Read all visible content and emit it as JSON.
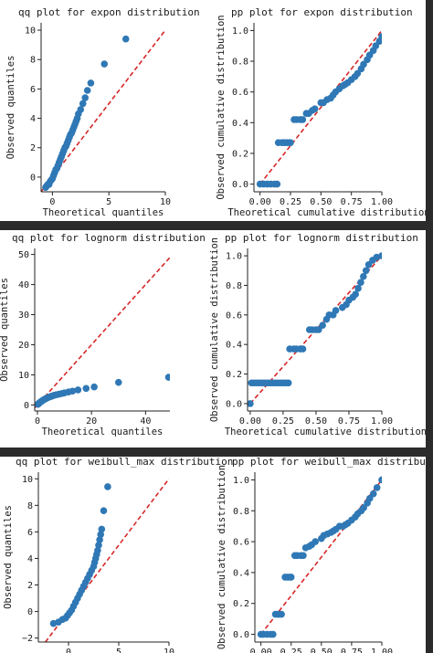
{
  "colors": {
    "points": "#2f78b5",
    "reference_line": "#d62728",
    "separator": "#2b2b2b"
  },
  "chart_data": [
    {
      "id": "qq-expon",
      "type": "scatter",
      "title": "qq plot for expon distribution",
      "xlabel": "Theoretical quantiles",
      "ylabel": "Observed quantiles",
      "xlim": [
        -1,
        10
      ],
      "ylim": [
        -1,
        10.5
      ],
      "xticks": [
        0,
        5,
        10
      ],
      "xtick_labels": [
        "0",
        "5",
        "10"
      ],
      "yticks": [
        0,
        2,
        4,
        6,
        8,
        10
      ],
      "ytick_labels": [
        "0",
        "2",
        "4",
        "6",
        "8",
        "10"
      ],
      "reference_line": [
        [
          -1,
          -1
        ],
        [
          10,
          10
        ]
      ],
      "x": [
        -0.6,
        -0.5,
        -0.4,
        -0.3,
        -0.2,
        -0.1,
        0.0,
        0.1,
        0.2,
        0.3,
        0.4,
        0.5,
        0.6,
        0.7,
        0.8,
        0.9,
        1.0,
        1.1,
        1.2,
        1.3,
        1.4,
        1.5,
        1.6,
        1.7,
        1.8,
        1.9,
        2.0,
        2.1,
        2.2,
        2.3,
        2.5,
        2.7,
        2.9,
        3.1,
        3.4,
        4.6,
        6.5
      ],
      "y": [
        -0.7,
        -0.6,
        -0.5,
        -0.5,
        -0.3,
        -0.2,
        -0.1,
        0.1,
        0.3,
        0.5,
        0.6,
        0.8,
        1.0,
        1.2,
        1.4,
        1.6,
        1.8,
        2.0,
        2.1,
        2.3,
        2.5,
        2.7,
        2.9,
        3.0,
        3.2,
        3.4,
        3.6,
        3.8,
        4.0,
        4.3,
        4.6,
        5.0,
        5.4,
        5.9,
        6.4,
        7.7,
        9.4
      ]
    },
    {
      "id": "pp-expon",
      "type": "scatter",
      "title": "pp plot for expon distribution",
      "xlabel": "Theoretical cumulative distribution",
      "ylabel": "Observed cumulative distribution",
      "xlim": [
        -0.05,
        1.0
      ],
      "ylim": [
        -0.05,
        1.05
      ],
      "xticks": [
        0,
        0.25,
        0.5,
        0.75,
        1.0
      ],
      "xtick_labels": [
        "0.00",
        "0.25",
        "0.50",
        "0.75",
        "1.00"
      ],
      "yticks": [
        0,
        0.2,
        0.4,
        0.6,
        0.8,
        1.0
      ],
      "ytick_labels": [
        "0.0",
        "0.2",
        "0.4",
        "0.6",
        "0.8",
        "1.0"
      ],
      "reference_line": [
        [
          0,
          0
        ],
        [
          1,
          1
        ]
      ],
      "x": [
        0.0,
        0.03,
        0.06,
        0.09,
        0.12,
        0.14,
        0.15,
        0.18,
        0.2,
        0.22,
        0.24,
        0.25,
        0.28,
        0.3,
        0.33,
        0.35,
        0.38,
        0.4,
        0.43,
        0.45,
        0.5,
        0.52,
        0.55,
        0.58,
        0.6,
        0.62,
        0.65,
        0.68,
        0.7,
        0.72,
        0.75,
        0.78,
        0.8,
        0.83,
        0.85,
        0.88,
        0.9,
        0.93,
        0.95,
        0.98,
        1.0
      ],
      "y": [
        0.0,
        0.0,
        0.0,
        0.0,
        0.0,
        0.0,
        0.27,
        0.27,
        0.27,
        0.27,
        0.27,
        0.27,
        0.42,
        0.42,
        0.42,
        0.42,
        0.46,
        0.46,
        0.48,
        0.49,
        0.53,
        0.53,
        0.55,
        0.56,
        0.58,
        0.6,
        0.62,
        0.64,
        0.65,
        0.66,
        0.68,
        0.7,
        0.72,
        0.75,
        0.78,
        0.81,
        0.84,
        0.87,
        0.9,
        0.93,
        0.96
      ]
    },
    {
      "id": "qq-lognorm",
      "type": "scatter",
      "title": "qq plot for lognorm distribution",
      "xlabel": "Theoretical quantiles",
      "ylabel": "Observed quantiles",
      "xlim": [
        -1,
        49
      ],
      "ylim": [
        -2,
        52
      ],
      "xticks": [
        0,
        20,
        40
      ],
      "xtick_labels": [
        "0",
        "20",
        "40"
      ],
      "yticks": [
        0,
        10,
        20,
        30,
        40,
        50
      ],
      "ytick_labels": [
        "0",
        "10",
        "20",
        "30",
        "40",
        "50"
      ],
      "reference_line": [
        [
          -1,
          -1
        ],
        [
          49,
          49
        ]
      ],
      "x": [
        0.2,
        0.4,
        0.6,
        0.9,
        1.2,
        1.5,
        1.8,
        2.1,
        2.5,
        2.9,
        3.3,
        3.8,
        4.3,
        4.9,
        5.5,
        6.2,
        7.0,
        8.0,
        9.0,
        10.0,
        11.5,
        13.0,
        15.0,
        18.0,
        21.0,
        30.0,
        48.5
      ],
      "y": [
        0.2,
        0.4,
        0.6,
        0.8,
        1.0,
        1.2,
        1.4,
        1.6,
        1.8,
        2.0,
        2.2,
        2.4,
        2.6,
        2.8,
        3.0,
        3.2,
        3.4,
        3.6,
        3.8,
        4.0,
        4.3,
        4.6,
        5.0,
        5.5,
        6.0,
        7.5,
        9.2
      ]
    },
    {
      "id": "pp-lognorm",
      "type": "scatter",
      "title": "pp plot for lognorm distribution",
      "xlabel": "Theoretical cumulative distribution",
      "ylabel": "Observed cumulative distribution",
      "xlim": [
        -0.02,
        1.0
      ],
      "ylim": [
        -0.05,
        1.05
      ],
      "xticks": [
        0,
        0.25,
        0.5,
        0.75,
        1.0
      ],
      "xtick_labels": [
        "0.00",
        "0.25",
        "0.50",
        "0.75",
        "1.00"
      ],
      "yticks": [
        0,
        0.2,
        0.4,
        0.6,
        0.8,
        1.0
      ],
      "ytick_labels": [
        "0.0",
        "0.2",
        "0.4",
        "0.6",
        "0.8",
        "1.0"
      ],
      "reference_line": [
        [
          0,
          0
        ],
        [
          1,
          1
        ]
      ],
      "x": [
        0.0,
        0.01,
        0.03,
        0.05,
        0.07,
        0.09,
        0.11,
        0.13,
        0.15,
        0.17,
        0.19,
        0.21,
        0.23,
        0.25,
        0.27,
        0.29,
        0.3,
        0.33,
        0.35,
        0.38,
        0.4,
        0.45,
        0.47,
        0.5,
        0.52,
        0.55,
        0.58,
        0.6,
        0.63,
        0.65,
        0.7,
        0.73,
        0.75,
        0.78,
        0.8,
        0.82,
        0.84,
        0.86,
        0.88,
        0.9,
        0.93,
        0.96,
        1.0
      ],
      "y": [
        0.0,
        0.14,
        0.14,
        0.14,
        0.14,
        0.14,
        0.14,
        0.14,
        0.14,
        0.14,
        0.14,
        0.14,
        0.14,
        0.14,
        0.14,
        0.14,
        0.37,
        0.37,
        0.37,
        0.37,
        0.37,
        0.5,
        0.5,
        0.5,
        0.5,
        0.53,
        0.57,
        0.6,
        0.6,
        0.63,
        0.65,
        0.67,
        0.7,
        0.72,
        0.74,
        0.78,
        0.82,
        0.86,
        0.9,
        0.94,
        0.97,
        0.99,
        1.0
      ]
    },
    {
      "id": "qq-weibull-max",
      "type": "scatter",
      "title": "qq plot for weibull_max distribution",
      "xlabel": "",
      "ylabel": "Observed quantiles",
      "xlim": [
        -3,
        10
      ],
      "ylim": [
        -2.3,
        10.5
      ],
      "xticks": [
        0,
        5,
        10
      ],
      "xtick_labels": [
        "0",
        "5",
        "10"
      ],
      "yticks": [
        -2,
        0,
        2,
        4,
        6,
        8,
        10
      ],
      "ytick_labels": [
        "−2",
        "0",
        "2",
        "4",
        "6",
        "8",
        "10"
      ],
      "reference_line": [
        [
          -2.3,
          -2.3
        ],
        [
          10,
          10
        ]
      ],
      "x": [
        -1.5,
        -1.0,
        -0.6,
        -0.3,
        -0.1,
        0.1,
        0.3,
        0.5,
        0.7,
        0.9,
        1.1,
        1.3,
        1.5,
        1.7,
        1.9,
        2.1,
        2.3,
        2.5,
        2.6,
        2.7,
        2.8,
        2.9,
        3.0,
        3.1,
        3.2,
        3.3,
        3.5,
        3.9
      ],
      "y": [
        -0.9,
        -0.8,
        -0.6,
        -0.5,
        -0.3,
        -0.1,
        0.1,
        0.4,
        0.7,
        1.0,
        1.3,
        1.6,
        1.9,
        2.2,
        2.5,
        2.8,
        3.1,
        3.4,
        3.7,
        4.0,
        4.3,
        4.6,
        5.0,
        5.4,
        5.8,
        6.2,
        7.6,
        9.4
      ]
    },
    {
      "id": "pp-weibull-max",
      "type": "scatter",
      "title": "pp plot for weibull_max distribution",
      "xlabel": "",
      "ylabel": "Observed cumulative distribution",
      "xlim": [
        -0.05,
        1.0
      ],
      "ylim": [
        -0.05,
        1.05
      ],
      "xticks": [
        0,
        0.25,
        0.5,
        0.75,
        1.0
      ],
      "xtick_labels": [
        "0.00",
        "0.25",
        "0.50",
        "0.75",
        "1.00"
      ],
      "yticks": [
        0,
        0.2,
        0.4,
        0.6,
        0.8,
        1.0
      ],
      "ytick_labels": [
        "0.0",
        "0.2",
        "0.4",
        "0.6",
        "0.8",
        "1.0"
      ],
      "reference_line": [
        [
          0,
          0
        ],
        [
          1,
          1
        ]
      ],
      "x": [
        0.0,
        0.02,
        0.05,
        0.08,
        0.1,
        0.12,
        0.14,
        0.15,
        0.17,
        0.2,
        0.22,
        0.24,
        0.25,
        0.28,
        0.3,
        0.33,
        0.35,
        0.37,
        0.4,
        0.42,
        0.45,
        0.5,
        0.52,
        0.55,
        0.58,
        0.6,
        0.62,
        0.65,
        0.68,
        0.7,
        0.72,
        0.75,
        0.78,
        0.8,
        0.83,
        0.85,
        0.88,
        0.9,
        0.93,
        0.96,
        1.0
      ],
      "y": [
        0.0,
        0.0,
        0.0,
        0.0,
        0.0,
        0.13,
        0.13,
        0.13,
        0.13,
        0.37,
        0.37,
        0.37,
        0.37,
        0.51,
        0.51,
        0.51,
        0.51,
        0.56,
        0.57,
        0.58,
        0.6,
        0.62,
        0.64,
        0.65,
        0.66,
        0.67,
        0.68,
        0.7,
        0.7,
        0.71,
        0.72,
        0.74,
        0.76,
        0.78,
        0.8,
        0.82,
        0.85,
        0.88,
        0.91,
        0.95,
        1.0
      ]
    }
  ]
}
